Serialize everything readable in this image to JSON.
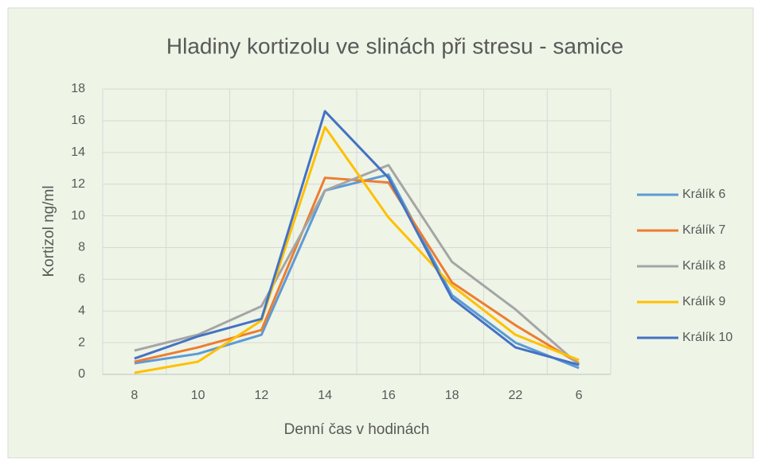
{
  "chart_data": {
    "type": "line",
    "title": "Hladiny kortizolu ve slinách při stresu  - samice",
    "x_label": "Denní čas v hodinách",
    "y_label": "Kortizol ng/ml",
    "categories": [
      "8",
      "10",
      "12",
      "14",
      "16",
      "18",
      "22",
      "6"
    ],
    "series": [
      {
        "name": "Králík 6",
        "color": "#5b9bd5",
        "values": [
          0.7,
          1.3,
          2.5,
          11.6,
          12.6,
          5.0,
          2.0,
          0.4
        ]
      },
      {
        "name": "Králík 7",
        "color": "#ed7d31",
        "values": [
          0.8,
          1.7,
          2.8,
          12.4,
          12.1,
          5.8,
          3.1,
          0.7
        ]
      },
      {
        "name": "Králík 8",
        "color": "#a5a5a5",
        "values": [
          1.5,
          2.5,
          4.3,
          11.6,
          13.2,
          7.1,
          4.1,
          0.6
        ]
      },
      {
        "name": "Králík 9",
        "color": "#ffc000",
        "values": [
          0.1,
          0.8,
          3.4,
          15.6,
          9.9,
          5.6,
          2.5,
          0.9
        ]
      },
      {
        "name": "Králík 10",
        "color": "#4472c4",
        "values": [
          1.0,
          2.4,
          3.5,
          16.6,
          12.4,
          4.8,
          1.7,
          0.6
        ]
      }
    ],
    "ylim": [
      0,
      18
    ],
    "yticks": [
      0,
      2,
      4,
      6,
      8,
      10,
      12,
      14,
      16,
      18
    ],
    "grid": true,
    "legend": "right"
  }
}
